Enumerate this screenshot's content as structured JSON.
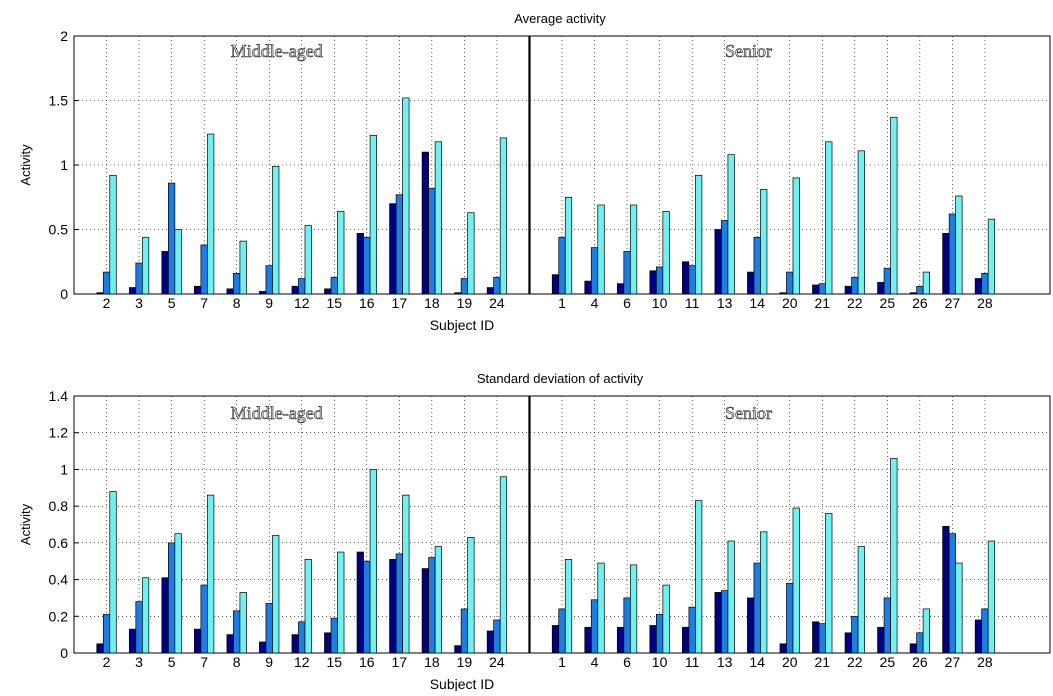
{
  "chart_data": [
    {
      "type": "bar",
      "title": "Average activity",
      "xlabel": "Subject ID",
      "ylabel": "Activity",
      "ylim": [
        0,
        2
      ],
      "yticks": [
        "0",
        "0.5",
        "1",
        "1.5",
        "2"
      ],
      "yticks_values": [
        0,
        0.5,
        1,
        1.5,
        2
      ],
      "grid": true,
      "group_labels": [
        "Middle-aged",
        "Senior"
      ],
      "series_colors": [
        "#000080",
        "#1e7de0",
        "#70f0f0"
      ],
      "groups": [
        {
          "label": "Middle-aged",
          "categories": [
            "2",
            "3",
            "5",
            "7",
            "8",
            "9",
            "12",
            "15",
            "16",
            "17",
            "18",
            "19",
            "24"
          ],
          "series": [
            {
              "values": [
                0.01,
                0.05,
                0.33,
                0.06,
                0.04,
                0.02,
                0.06,
                0.04,
                0.47,
                0.7,
                1.1,
                0.01,
                0.05
              ]
            },
            {
              "values": [
                0.17,
                0.24,
                0.86,
                0.38,
                0.16,
                0.22,
                0.12,
                0.13,
                0.44,
                0.77,
                0.82,
                0.12,
                0.13
              ]
            },
            {
              "values": [
                0.92,
                0.44,
                0.5,
                1.24,
                0.41,
                0.99,
                0.53,
                0.64,
                1.23,
                1.52,
                1.18,
                0.63,
                1.21
              ]
            }
          ]
        },
        {
          "label": "Senior",
          "categories": [
            "1",
            "4",
            "6",
            "10",
            "11",
            "13",
            "14",
            "20",
            "21",
            "22",
            "25",
            "26",
            "27",
            "28"
          ],
          "series": [
            {
              "values": [
                0.15,
                0.1,
                0.08,
                0.18,
                0.25,
                0.5,
                0.17,
                0.01,
                0.07,
                0.06,
                0.09,
                0.01,
                0.47,
                0.12
              ]
            },
            {
              "values": [
                0.44,
                0.36,
                0.33,
                0.21,
                0.22,
                0.57,
                0.44,
                0.17,
                0.08,
                0.13,
                0.2,
                0.06,
                0.62,
                0.16
              ]
            },
            {
              "values": [
                0.75,
                0.69,
                0.69,
                0.64,
                0.92,
                1.08,
                0.81,
                0.9,
                1.18,
                1.11,
                1.37,
                0.17,
                0.76,
                0.58
              ]
            }
          ]
        }
      ]
    },
    {
      "type": "bar",
      "title": "Standard deviation of activity",
      "xlabel": "Subject ID",
      "ylabel": "Activity",
      "ylim": [
        0,
        1.4
      ],
      "yticks": [
        "0",
        "0.2",
        "0.4",
        "0.6",
        "0.8",
        "1",
        "1.2",
        "1.4"
      ],
      "yticks_values": [
        0,
        0.2,
        0.4,
        0.6,
        0.8,
        1.0,
        1.2,
        1.4
      ],
      "grid": true,
      "group_labels": [
        "Middle-aged",
        "Senior"
      ],
      "series_colors": [
        "#000080",
        "#1e7de0",
        "#70f0f0"
      ],
      "groups": [
        {
          "label": "Middle-aged",
          "categories": [
            "2",
            "3",
            "5",
            "7",
            "8",
            "9",
            "12",
            "15",
            "16",
            "17",
            "18",
            "19",
            "24"
          ],
          "series": [
            {
              "values": [
                0.05,
                0.13,
                0.41,
                0.13,
                0.1,
                0.06,
                0.1,
                0.11,
                0.55,
                0.51,
                0.46,
                0.04,
                0.12
              ]
            },
            {
              "values": [
                0.21,
                0.28,
                0.6,
                0.37,
                0.23,
                0.27,
                0.17,
                0.19,
                0.5,
                0.54,
                0.52,
                0.24,
                0.18
              ]
            },
            {
              "values": [
                0.88,
                0.41,
                0.65,
                0.86,
                0.33,
                0.64,
                0.51,
                0.55,
                1.0,
                0.86,
                0.58,
                0.63,
                0.96
              ]
            }
          ]
        },
        {
          "label": "Senior",
          "categories": [
            "1",
            "4",
            "6",
            "10",
            "11",
            "13",
            "14",
            "20",
            "21",
            "22",
            "25",
            "26",
            "27",
            "28"
          ],
          "series": [
            {
              "values": [
                0.15,
                0.14,
                0.14,
                0.15,
                0.14,
                0.33,
                0.3,
                0.05,
                0.17,
                0.11,
                0.14,
                0.05,
                0.69,
                0.18
              ]
            },
            {
              "values": [
                0.24,
                0.29,
                0.3,
                0.21,
                0.25,
                0.34,
                0.49,
                0.38,
                0.16,
                0.2,
                0.3,
                0.11,
                0.65,
                0.24
              ]
            },
            {
              "values": [
                0.51,
                0.49,
                0.48,
                0.37,
                0.83,
                0.61,
                0.66,
                0.79,
                0.76,
                0.58,
                1.06,
                0.24,
                0.49,
                0.61
              ]
            }
          ]
        }
      ]
    }
  ]
}
